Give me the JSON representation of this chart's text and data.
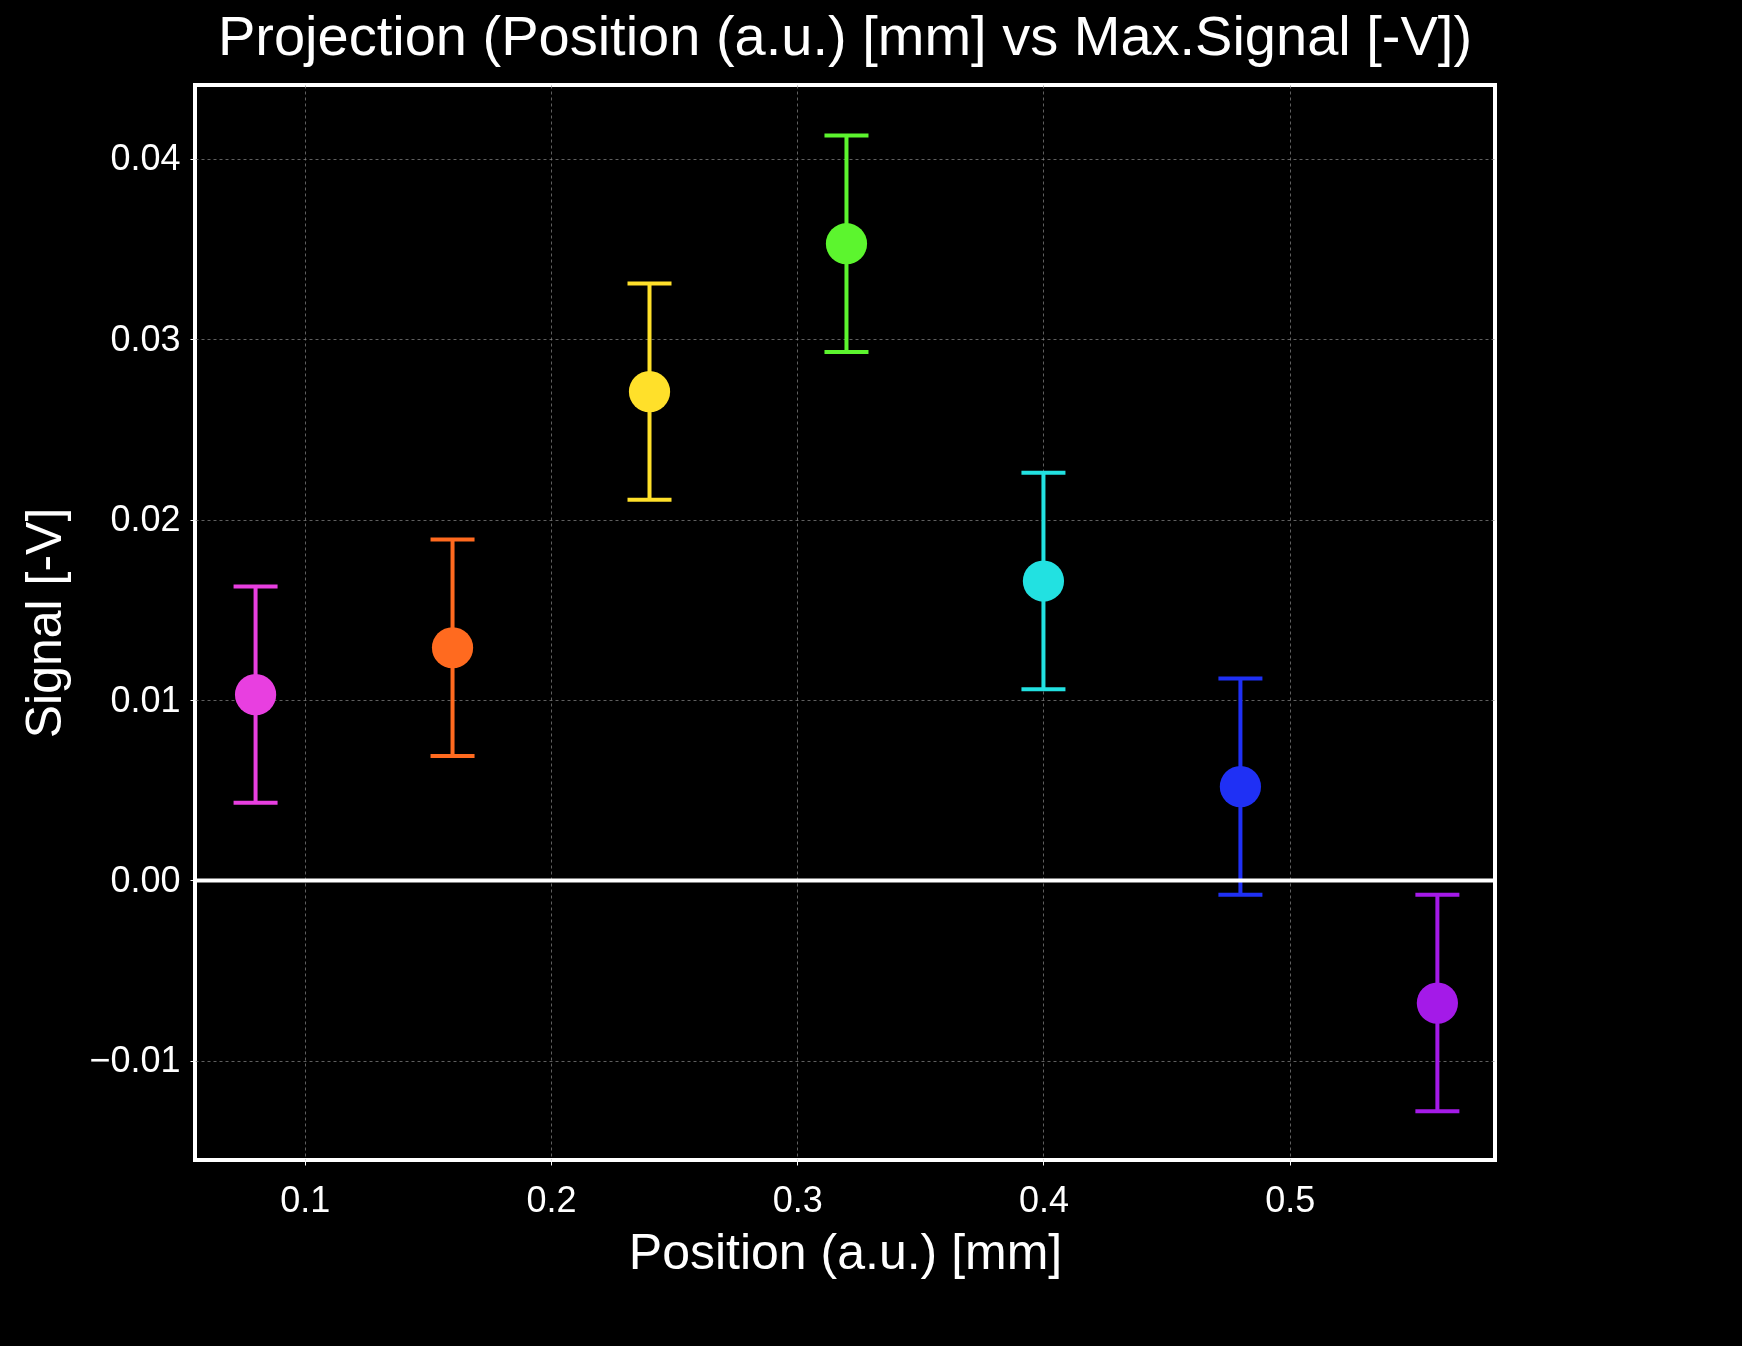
{
  "chart_data": {
    "type": "scatter",
    "title": "Projection (Position (a.u.) [mm] vs Max.Signal [-V])",
    "xlabel": "Position (a.u.) [mm]",
    "ylabel": "Signal [-V]",
    "x": [
      0.08,
      0.16,
      0.24,
      0.32,
      0.4,
      0.48,
      0.56
    ],
    "values": [
      0.0103,
      0.0129,
      0.0271,
      0.0353,
      0.0166,
      0.0052,
      -0.0068
    ],
    "errors": [
      0.006,
      0.006,
      0.006,
      0.006,
      0.006,
      0.006,
      0.006
    ],
    "colors": [
      "#e83fe0",
      "#ff6a1f",
      "#ffe02a",
      "#5cf52e",
      "#22e1e1",
      "#1f30f5",
      "#a41ae8"
    ],
    "xlim": [
      0.0554,
      0.5834
    ],
    "xticks": [
      0.1,
      0.2,
      0.3,
      0.4,
      0.5
    ],
    "ylim": [
      -0.0155,
      0.0441
    ],
    "yticks": [
      {
        "value": -0.01,
        "label": "−0.01"
      },
      {
        "value": 0,
        "label": "0.00"
      },
      0.01,
      0.02,
      0.03,
      0.04
    ],
    "ref_lines": [
      {
        "axis": "y",
        "value": 0,
        "color": "#ffffff"
      }
    ],
    "grid": true,
    "marker": "circle"
  }
}
